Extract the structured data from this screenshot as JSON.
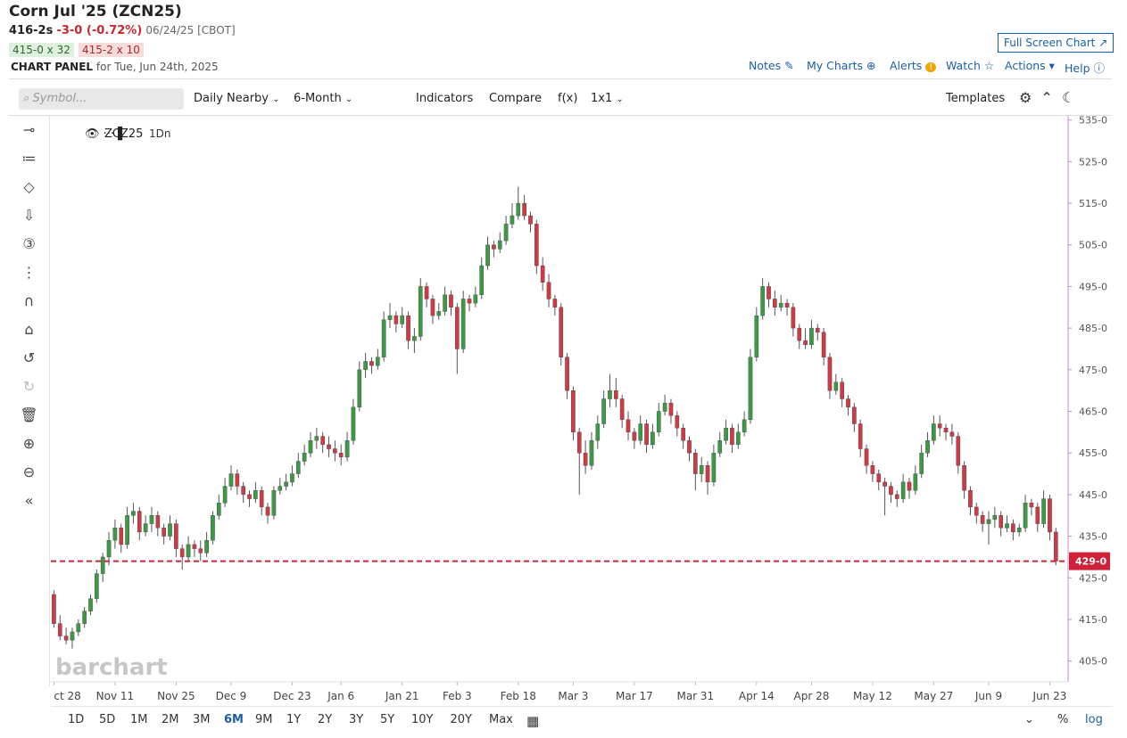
{
  "header": {
    "title": "Corn Jul '25 (ZCN25)",
    "last": "416-2s",
    "change": "-3-0 (-0.72%)",
    "date": "06/24/25 [CBOT]",
    "bid": "415-0 x 32",
    "ask": "415-2 x 10",
    "panel": "CHART PANEL",
    "panel_date": "for Tue, Jun 24th, 2025",
    "full_screen": "Full Screen Chart"
  },
  "nav": [
    "Notes",
    "My Charts",
    "Alerts",
    "Watch",
    "Actions",
    "Help"
  ],
  "toolbar": {
    "symbol_placeholder": "Symbol...",
    "items": [
      "Daily Nearby",
      "6-Month",
      "Indicators",
      "Compare",
      "f(x)",
      "1x1"
    ],
    "templates": "Templates"
  },
  "ranges": [
    "1D",
    "5D",
    "1M",
    "2M",
    "3M",
    "6M",
    "9M",
    "1Y",
    "2Y",
    "3Y",
    "5Y",
    "10Y",
    "20Y",
    "Max"
  ],
  "active_range": 5,
  "scale_buttons": [
    "%",
    "log"
  ],
  "chart_data": {
    "type": "candlestick",
    "symbol": "ZCZ25",
    "interval": "1Dn",
    "watermark": "barchart",
    "up_color": "#3c9a45",
    "down_color": "#cf3a44",
    "ohlc": [
      [
        421,
        422,
        413,
        414
      ],
      [
        414,
        416,
        410,
        411
      ],
      [
        411,
        413,
        409,
        410
      ],
      [
        410,
        413,
        408,
        412
      ],
      [
        412,
        415,
        411,
        414
      ],
      [
        414,
        418,
        413,
        417
      ],
      [
        417,
        421,
        416,
        420
      ],
      [
        420,
        427,
        419,
        426
      ],
      [
        426,
        431,
        424,
        430
      ],
      [
        430,
        436,
        428,
        434
      ],
      [
        434,
        439,
        432,
        437
      ],
      [
        437,
        438,
        431,
        433
      ],
      [
        433,
        442,
        432,
        440
      ],
      [
        440,
        443,
        438,
        441
      ],
      [
        441,
        442,
        434,
        436
      ],
      [
        436,
        440,
        435,
        438
      ],
      [
        438,
        442,
        436,
        440
      ],
      [
        440,
        441,
        435,
        437
      ],
      [
        437,
        438,
        433,
        435
      ],
      [
        435,
        440,
        434,
        438
      ],
      [
        438,
        439,
        430,
        432
      ],
      [
        432,
        433,
        427,
        430
      ],
      [
        430,
        435,
        429,
        433
      ],
      [
        433,
        434,
        430,
        432
      ],
      [
        432,
        434,
        429,
        431
      ],
      [
        431,
        436,
        430,
        434
      ],
      [
        434,
        441,
        433,
        440
      ],
      [
        440,
        445,
        439,
        443
      ],
      [
        443,
        449,
        442,
        447
      ],
      [
        447,
        452,
        446,
        450
      ],
      [
        450,
        451,
        445,
        447
      ],
      [
        447,
        448,
        443,
        445
      ],
      [
        445,
        446,
        442,
        444
      ],
      [
        444,
        448,
        443,
        446
      ],
      [
        446,
        447,
        440,
        442
      ],
      [
        442,
        443,
        438,
        440
      ],
      [
        440,
        447,
        439,
        446
      ],
      [
        446,
        449,
        445,
        447
      ],
      [
        447,
        450,
        446,
        448
      ],
      [
        448,
        452,
        447,
        450
      ],
      [
        450,
        455,
        449,
        453
      ],
      [
        453,
        457,
        452,
        455
      ],
      [
        455,
        460,
        454,
        458
      ],
      [
        458,
        461,
        456,
        459
      ],
      [
        459,
        460,
        455,
        457
      ],
      [
        457,
        459,
        454,
        456
      ],
      [
        456,
        458,
        453,
        455
      ],
      [
        455,
        457,
        452,
        454
      ],
      [
        454,
        460,
        453,
        458
      ],
      [
        458,
        468,
        457,
        466
      ],
      [
        466,
        477,
        465,
        475
      ],
      [
        475,
        479,
        473,
        477
      ],
      [
        477,
        478,
        474,
        476
      ],
      [
        476,
        480,
        475,
        478
      ],
      [
        478,
        489,
        477,
        487
      ],
      [
        487,
        491,
        485,
        488
      ],
      [
        488,
        489,
        484,
        486
      ],
      [
        486,
        490,
        485,
        488
      ],
      [
        488,
        489,
        480,
        482
      ],
      [
        482,
        485,
        479,
        483
      ],
      [
        483,
        497,
        482,
        495
      ],
      [
        495,
        496,
        490,
        492
      ],
      [
        492,
        493,
        486,
        488
      ],
      [
        488,
        491,
        487,
        489
      ],
      [
        489,
        495,
        488,
        493
      ],
      [
        493,
        494,
        488,
        490
      ],
      [
        490,
        491,
        474,
        480
      ],
      [
        480,
        494,
        479,
        492
      ],
      [
        492,
        493,
        489,
        491
      ],
      [
        491,
        495,
        490,
        493
      ],
      [
        493,
        502,
        492,
        500
      ],
      [
        500,
        507,
        499,
        505
      ],
      [
        505,
        506,
        502,
        504
      ],
      [
        504,
        508,
        503,
        506
      ],
      [
        506,
        512,
        505,
        510
      ],
      [
        510,
        515,
        509,
        512
      ],
      [
        512,
        519,
        511,
        515
      ],
      [
        515,
        517,
        511,
        512
      ],
      [
        512,
        513,
        508,
        510
      ],
      [
        510,
        511,
        498,
        500
      ],
      [
        500,
        502,
        494,
        496
      ],
      [
        496,
        498,
        490,
        492
      ],
      [
        492,
        493,
        488,
        490
      ],
      [
        490,
        491,
        476,
        478
      ],
      [
        478,
        479,
        468,
        470
      ],
      [
        470,
        471,
        458,
        460
      ],
      [
        460,
        461,
        445,
        455
      ],
      [
        455,
        458,
        450,
        452
      ],
      [
        452,
        460,
        451,
        458
      ],
      [
        458,
        464,
        456,
        462
      ],
      [
        462,
        470,
        461,
        468
      ],
      [
        468,
        474,
        466,
        470
      ],
      [
        470,
        473,
        466,
        468
      ],
      [
        468,
        469,
        461,
        463
      ],
      [
        463,
        465,
        458,
        460
      ],
      [
        460,
        461,
        456,
        458
      ],
      [
        458,
        464,
        457,
        462
      ],
      [
        462,
        463,
        455,
        457
      ],
      [
        457,
        462,
        456,
        460
      ],
      [
        460,
        467,
        459,
        465
      ],
      [
        465,
        469,
        464,
        467
      ],
      [
        467,
        468,
        462,
        464
      ],
      [
        464,
        465,
        459,
        461
      ],
      [
        461,
        462,
        456,
        458
      ],
      [
        458,
        459,
        453,
        455
      ],
      [
        455,
        456,
        446,
        450
      ],
      [
        450,
        454,
        448,
        452
      ],
      [
        452,
        453,
        445,
        448
      ],
      [
        448,
        457,
        447,
        455
      ],
      [
        455,
        460,
        454,
        458
      ],
      [
        458,
        463,
        457,
        461
      ],
      [
        461,
        462,
        455,
        457
      ],
      [
        457,
        462,
        456,
        460
      ],
      [
        460,
        465,
        459,
        463
      ],
      [
        463,
        480,
        462,
        478
      ],
      [
        478,
        490,
        477,
        488
      ],
      [
        488,
        497,
        487,
        495
      ],
      [
        495,
        496,
        490,
        492
      ],
      [
        492,
        494,
        488,
        490
      ],
      [
        490,
        493,
        489,
        491
      ],
      [
        491,
        492,
        488,
        490
      ],
      [
        490,
        491,
        483,
        485
      ],
      [
        485,
        486,
        480,
        482
      ],
      [
        482,
        485,
        480,
        481
      ],
      [
        481,
        487,
        480,
        485
      ],
      [
        485,
        486,
        482,
        484
      ],
      [
        484,
        485,
        476,
        478
      ],
      [
        478,
        479,
        468,
        470
      ],
      [
        470,
        474,
        469,
        472
      ],
      [
        472,
        473,
        466,
        468
      ],
      [
        468,
        469,
        464,
        466
      ],
      [
        466,
        467,
        460,
        462
      ],
      [
        462,
        463,
        454,
        456
      ],
      [
        456,
        457,
        450,
        452
      ],
      [
        452,
        453,
        448,
        450
      ],
      [
        450,
        451,
        446,
        448
      ],
      [
        448,
        449,
        440,
        447
      ],
      [
        447,
        448,
        443,
        445
      ],
      [
        445,
        446,
        442,
        444
      ],
      [
        444,
        450,
        443,
        448
      ],
      [
        448,
        449,
        444,
        446
      ],
      [
        446,
        452,
        445,
        450
      ],
      [
        450,
        457,
        449,
        455
      ],
      [
        455,
        460,
        454,
        458
      ],
      [
        458,
        464,
        457,
        462
      ],
      [
        462,
        464,
        459,
        461
      ],
      [
        461,
        462,
        458,
        460
      ],
      [
        460,
        462,
        457,
        459
      ],
      [
        459,
        460,
        450,
        452
      ],
      [
        452,
        453,
        444,
        446
      ],
      [
        446,
        447,
        440,
        442
      ],
      [
        442,
        443,
        438,
        440
      ],
      [
        440,
        441,
        436,
        438
      ],
      [
        438,
        441,
        433,
        439
      ],
      [
        439,
        442,
        437,
        440
      ],
      [
        440,
        441,
        435,
        437
      ],
      [
        437,
        440,
        436,
        438
      ],
      [
        438,
        439,
        434,
        436
      ],
      [
        436,
        438,
        435,
        437
      ],
      [
        437,
        445,
        436,
        443
      ],
      [
        443,
        444,
        440,
        442
      ],
      [
        442,
        443,
        436,
        438
      ],
      [
        438,
        446,
        437,
        444
      ],
      [
        444,
        445,
        434,
        436
      ],
      [
        436,
        437,
        428,
        429
      ]
    ],
    "xlim": [
      -0.5,
      166
    ],
    "xticks": [
      {
        "value": 0,
        "label": "ct 28"
      },
      {
        "value": 10,
        "label": "Nov 11"
      },
      {
        "value": 20,
        "label": "Nov 25"
      },
      {
        "value": 29,
        "label": "Dec 9"
      },
      {
        "value": 39,
        "label": "Dec 23"
      },
      {
        "value": 47,
        "label": "Jan 6"
      },
      {
        "value": 57,
        "label": "Jan 21"
      },
      {
        "value": 66,
        "label": "Feb 3"
      },
      {
        "value": 76,
        "label": "Feb 18"
      },
      {
        "value": 85,
        "label": "Mar 3"
      },
      {
        "value": 95,
        "label": "Mar 17"
      },
      {
        "value": 105,
        "label": "Mar 31"
      },
      {
        "value": 115,
        "label": "Apr 14"
      },
      {
        "value": 124,
        "label": "Apr 28"
      },
      {
        "value": 134,
        "label": "May 12"
      },
      {
        "value": 144,
        "label": "May 27"
      },
      {
        "value": 153,
        "label": "Jun 9"
      },
      {
        "value": 163,
        "label": "Jun 23"
      }
    ],
    "ylim": [
      400,
      536
    ],
    "yticks": [
      {
        "value": 535,
        "label": "535-0"
      },
      {
        "value": 525,
        "label": "525-0"
      },
      {
        "value": 515,
        "label": "515-0"
      },
      {
        "value": 505,
        "label": "505-0"
      },
      {
        "value": 495,
        "label": "495-0"
      },
      {
        "value": 485,
        "label": "485-0"
      },
      {
        "value": 475,
        "label": "475-0"
      },
      {
        "value": 465,
        "label": "465-0"
      },
      {
        "value": 455,
        "label": "455-0"
      },
      {
        "value": 445,
        "label": "445-0"
      },
      {
        "value": 435,
        "label": "435-0"
      },
      {
        "value": 425,
        "label": "425-0"
      },
      {
        "value": 415,
        "label": "415-0"
      },
      {
        "value": 405,
        "label": "405-0"
      }
    ],
    "price_line": {
      "value": 429,
      "label": "429-0",
      "color": "#d0213a"
    }
  }
}
